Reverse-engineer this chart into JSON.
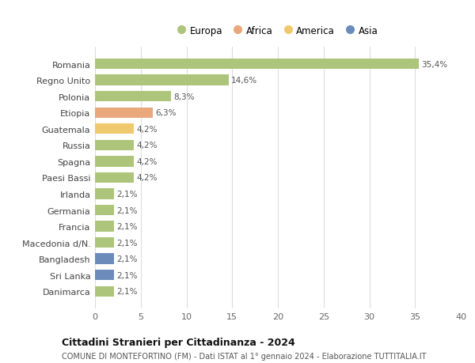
{
  "countries": [
    "Romania",
    "Regno Unito",
    "Polonia",
    "Etiopia",
    "Guatemala",
    "Russia",
    "Spagna",
    "Paesi Bassi",
    "Irlanda",
    "Germania",
    "Francia",
    "Macedonia d/N.",
    "Bangladesh",
    "Sri Lanka",
    "Danimarca"
  ],
  "values": [
    35.4,
    14.6,
    8.3,
    6.3,
    4.2,
    4.2,
    4.2,
    4.2,
    2.1,
    2.1,
    2.1,
    2.1,
    2.1,
    2.1,
    2.1
  ],
  "labels": [
    "35,4%",
    "14,6%",
    "8,3%",
    "6,3%",
    "4,2%",
    "4,2%",
    "4,2%",
    "4,2%",
    "2,1%",
    "2,1%",
    "2,1%",
    "2,1%",
    "2,1%",
    "2,1%",
    "2,1%"
  ],
  "colors": [
    "#adc57a",
    "#adc57a",
    "#adc57a",
    "#e8a87c",
    "#f0c96e",
    "#adc57a",
    "#adc57a",
    "#adc57a",
    "#adc57a",
    "#adc57a",
    "#adc57a",
    "#adc57a",
    "#6b8cba",
    "#6b8cba",
    "#adc57a"
  ],
  "legend_labels": [
    "Europa",
    "Africa",
    "America",
    "Asia"
  ],
  "legend_colors": [
    "#adc57a",
    "#e8a87c",
    "#f0c96e",
    "#6b8cba"
  ],
  "title": "Cittadini Stranieri per Cittadinanza - 2024",
  "subtitle": "COMUNE DI MONTEFORTINO (FM) - Dati ISTAT al 1° gennaio 2024 - Elaborazione TUTTITALIA.IT",
  "xlim": [
    0,
    40
  ],
  "xticks": [
    0,
    5,
    10,
    15,
    20,
    25,
    30,
    35,
    40
  ],
  "bg_color": "#ffffff",
  "grid_color": "#dddddd",
  "bar_height": 0.65
}
